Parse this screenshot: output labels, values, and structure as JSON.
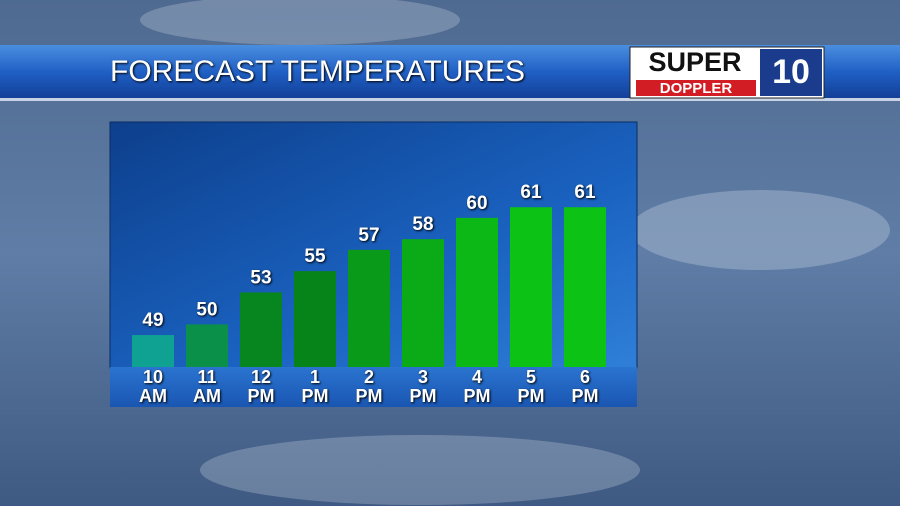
{
  "chart_data": {
    "type": "bar",
    "title": "FORECAST TEMPERATURES",
    "categories": [
      "10 AM",
      "11 AM",
      "12 PM",
      "1 PM",
      "2 PM",
      "3 PM",
      "4 PM",
      "5 PM",
      "6 PM"
    ],
    "values": [
      49,
      50,
      53,
      55,
      57,
      58,
      60,
      61,
      61
    ],
    "colors": [
      "#0fa293",
      "#0a9049",
      "#07861f",
      "#06841a",
      "#089a18",
      "#0aab16",
      "#0bb815",
      "#0cc214",
      "#0cc214"
    ],
    "ylim": [
      46,
      69
    ]
  },
  "logo": {
    "line1": "SUPER",
    "line2": "DOPPLER",
    "number": "10"
  }
}
